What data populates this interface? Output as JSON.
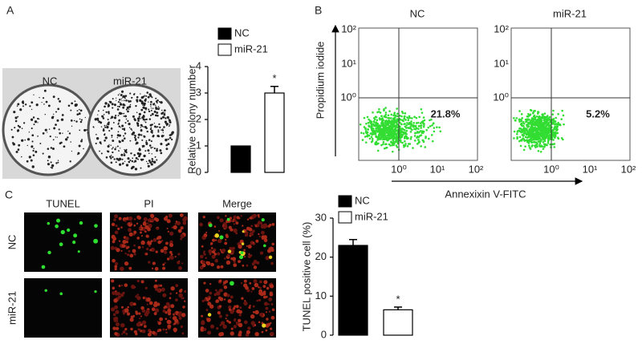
{
  "panels": {
    "a": "A",
    "b": "B",
    "c": "C"
  },
  "colony_plates": [
    "NC",
    "miR-21"
  ],
  "flow": {
    "y_label": "Propidium iodide",
    "x_label": "Annexixin V-FITC",
    "ticks": [
      "10⁰",
      "10¹",
      "10²"
    ],
    "plots": [
      {
        "title": "NC",
        "quadrant_value": "21.8%"
      },
      {
        "title": "miR-21",
        "quadrant_value": "5.2%"
      }
    ]
  },
  "micrographs": {
    "columns": [
      "TUNEL",
      "PI",
      "Merge"
    ],
    "rows": [
      "NC",
      "miR-21"
    ]
  },
  "chart_data": [
    {
      "type": "bar",
      "y_label": "Relative colony number",
      "categories": [
        null
      ],
      "series": [
        {
          "name": "NC",
          "color": "#000000",
          "values": [
            1
          ]
        },
        {
          "name": "miR-21",
          "color": "#ffffff",
          "values": [
            3.0
          ],
          "errors": [
            0.25
          ]
        }
      ],
      "annotation": "*",
      "ylim": [
        0,
        4
      ],
      "yticks": [
        0,
        1,
        2,
        3,
        4
      ]
    },
    {
      "type": "bar",
      "y_label": "TUNEL positive cell (%)",
      "categories": [
        null
      ],
      "series": [
        {
          "name": "NC",
          "color": "#000000",
          "values": [
            23
          ],
          "errors": [
            1.5
          ]
        },
        {
          "name": "miR-21",
          "color": "#ffffff",
          "values": [
            6.5
          ],
          "errors": [
            0.7
          ]
        }
      ],
      "annotation": "*",
      "ylim": [
        0,
        30
      ],
      "yticks": [
        0,
        10,
        20,
        30
      ]
    }
  ]
}
